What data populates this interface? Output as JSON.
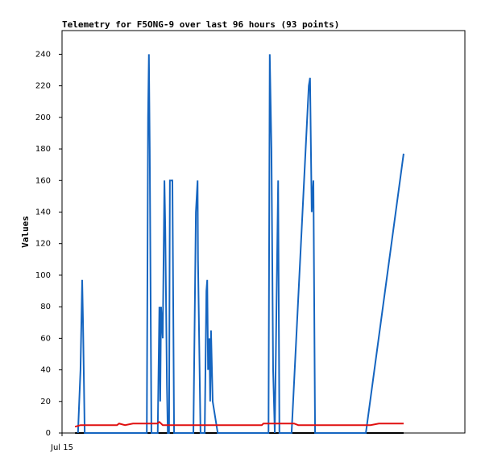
{
  "chart_data": {
    "type": "line",
    "title": "Telemetry for F5ONG-9 over last 96 hours (93 points)",
    "y_label": "Values",
    "xlim": [
      0,
      96
    ],
    "xticks": [
      {
        "value": 0,
        "label": "Jul 15"
      }
    ],
    "ylim": [
      0,
      255
    ],
    "yticks": [
      0,
      20,
      40,
      60,
      80,
      100,
      120,
      140,
      160,
      180,
      200,
      220,
      240
    ],
    "series": [
      {
        "color": "#000000",
        "x": [
          3.1,
          81.4
        ],
        "values": [
          0,
          0
        ]
      },
      {
        "color": "#1565c0",
        "x": [
          3.8,
          4.4,
          4.8,
          5.0,
          5.4,
          20.2,
          20.5,
          20.7,
          20.9,
          21.3,
          22.8,
          23.2,
          23.4,
          23.6,
          24.0,
          24.4,
          24.6,
          25.0,
          25.2,
          25.5,
          25.7,
          26.3,
          26.7,
          31.3,
          31.9,
          32.3,
          32.4,
          33.0,
          34.0,
          34.4,
          34.6,
          34.8,
          35.1,
          35.3,
          35.5,
          35.9,
          37.1,
          49.2,
          49.5,
          49.9,
          50.3,
          50.7,
          51.1,
          51.5,
          51.8,
          52.4,
          54.7,
          58.8,
          59.1,
          59.5,
          59.9,
          60.3,
          72.4,
          81.4
        ],
        "values": [
          0,
          40,
          97,
          70,
          0,
          0,
          200,
          240,
          180,
          0,
          0,
          80,
          20,
          80,
          60,
          160,
          130,
          30,
          0,
          0,
          160,
          160,
          0,
          0,
          140,
          160,
          110,
          0,
          0,
          90,
          97,
          40,
          60,
          20,
          65,
          20,
          0,
          0,
          240,
          180,
          40,
          0,
          80,
          160,
          0,
          0,
          0,
          220,
          225,
          140,
          160,
          0,
          0,
          177
        ]
      },
      {
        "color": "#e01010",
        "x": [
          3.1,
          4.4,
          13.1,
          13.6,
          15.0,
          16.9,
          22.7,
          23.2,
          24.0,
          47.6,
          48.0,
          52.4,
          55.3,
          56.3,
          73.5,
          75.5,
          81.4
        ],
        "values": [
          4,
          5,
          5,
          6,
          5,
          6,
          6,
          7,
          5,
          5,
          6,
          6,
          6,
          5,
          5,
          6,
          6
        ]
      }
    ]
  }
}
